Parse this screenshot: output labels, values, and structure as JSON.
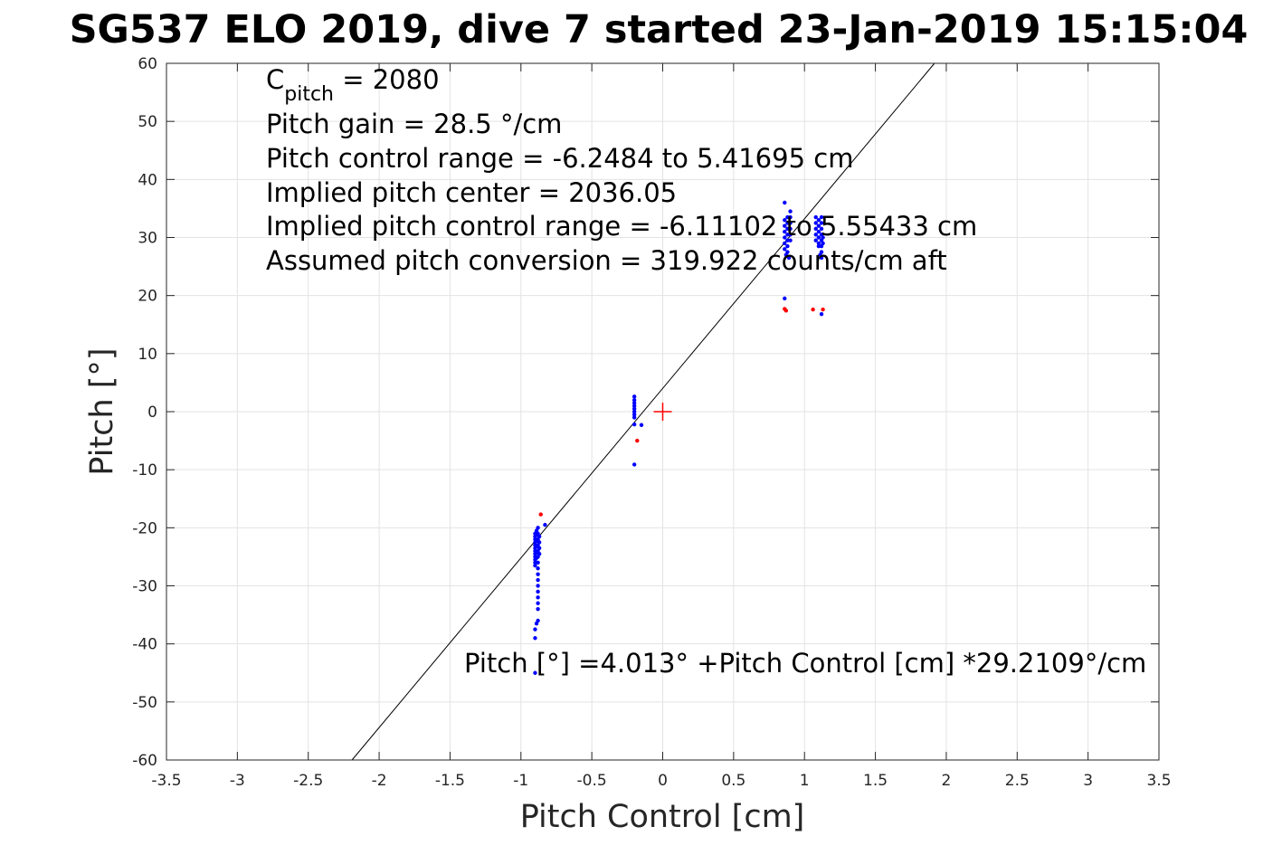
{
  "chart_data": {
    "type": "scatter",
    "title": "SG537 ELO 2019, dive 7 started 23-Jan-2019 15:15:04",
    "xlabel": "Pitch Control [cm]",
    "ylabel": "Pitch [°]",
    "xlim": [
      -3.5,
      3.5
    ],
    "ylim": [
      -60,
      60
    ],
    "xticks": [
      -3.5,
      -3,
      -2.5,
      -2,
      -1.5,
      -1,
      -0.5,
      0,
      0.5,
      1,
      1.5,
      2,
      2.5,
      3,
      3.5
    ],
    "xtick_labels": [
      "-3.5",
      "-3",
      "-2.5",
      "-2",
      "-1.5",
      "-1",
      "-0.5",
      "0",
      "0.5",
      "1",
      "1.5",
      "2",
      "2.5",
      "3",
      "3.5"
    ],
    "yticks": [
      -60,
      -50,
      -40,
      -30,
      -20,
      -10,
      0,
      10,
      20,
      30,
      40,
      50,
      60
    ],
    "ytick_labels": [
      "-60",
      "-50",
      "-40",
      "-30",
      "-20",
      "-10",
      "0",
      "10",
      "20",
      "30",
      "40",
      "50",
      "60"
    ],
    "grid": true,
    "fit_line": {
      "intercept": 4.013,
      "slope": 29.2109
    },
    "center_marker": {
      "x": 0,
      "y": 0,
      "color": "#ff0000"
    },
    "annotations": {
      "cpitch_prefix": "C",
      "cpitch_sub": "pitch",
      "cpitch_value": " = 2080",
      "lines": [
        "Pitch gain = 28.5 °/cm",
        "Pitch control range = -6.2484 to 5.41695 cm",
        "Implied pitch center = 2036.05",
        "Implied pitch control range = -6.11102 to 5.55433 cm",
        "Assumed pitch conversion = 319.922 counts/cm aft"
      ],
      "fit_equation": "Pitch [°] =4.013° +Pitch Control [cm] *29.2109°/cm"
    },
    "series": [
      {
        "color": "#0000ff",
        "points": [
          [
            -0.9,
            -21
          ],
          [
            -0.9,
            -21.5
          ],
          [
            -0.9,
            -22
          ],
          [
            -0.9,
            -22.5
          ],
          [
            -0.9,
            -23
          ],
          [
            -0.9,
            -23.5
          ],
          [
            -0.9,
            -24
          ],
          [
            -0.9,
            -24.5
          ],
          [
            -0.9,
            -25
          ],
          [
            -0.9,
            -25.5
          ],
          [
            -0.9,
            -26
          ],
          [
            -0.9,
            -26.5
          ],
          [
            -0.89,
            -20.5
          ],
          [
            -0.89,
            -21.2
          ],
          [
            -0.89,
            -22.3
          ],
          [
            -0.89,
            -23.2
          ],
          [
            -0.89,
            -24.3
          ],
          [
            -0.89,
            -25.2
          ],
          [
            -0.88,
            -20
          ],
          [
            -0.88,
            -21
          ],
          [
            -0.88,
            -22
          ],
          [
            -0.88,
            -23
          ],
          [
            -0.88,
            -24
          ],
          [
            -0.88,
            -25
          ],
          [
            -0.88,
            -26
          ],
          [
            -0.88,
            -27
          ],
          [
            -0.88,
            -28
          ],
          [
            -0.88,
            -29
          ],
          [
            -0.88,
            -30
          ],
          [
            -0.88,
            -31
          ],
          [
            -0.88,
            -32
          ],
          [
            -0.88,
            -33
          ],
          [
            -0.88,
            -34
          ],
          [
            -0.87,
            -21.5
          ],
          [
            -0.87,
            -22.5
          ],
          [
            -0.87,
            -23.5
          ],
          [
            -0.87,
            -24.5
          ],
          [
            -0.89,
            -36.5
          ],
          [
            -0.9,
            -37.5
          ],
          [
            -0.88,
            -36
          ],
          [
            -0.9,
            -39
          ],
          [
            -0.9,
            -45
          ],
          [
            -0.83,
            -19.5
          ],
          [
            -0.2,
            2.6
          ],
          [
            -0.2,
            2
          ],
          [
            -0.2,
            1.5
          ],
          [
            -0.2,
            1
          ],
          [
            -0.2,
            0.5
          ],
          [
            -0.2,
            0
          ],
          [
            -0.2,
            -0.5
          ],
          [
            -0.2,
            -1
          ],
          [
            -0.2,
            -2.2
          ],
          [
            -0.15,
            -2.3
          ],
          [
            -0.2,
            -9.1
          ],
          [
            0.86,
            36
          ],
          [
            0.86,
            33
          ],
          [
            0.86,
            32
          ],
          [
            0.86,
            31
          ],
          [
            0.86,
            30
          ],
          [
            0.86,
            29
          ],
          [
            0.86,
            28
          ],
          [
            0.88,
            33.5
          ],
          [
            0.88,
            32.5
          ],
          [
            0.88,
            31.5
          ],
          [
            0.88,
            30.5
          ],
          [
            0.88,
            29.5
          ],
          [
            0.88,
            28.5
          ],
          [
            0.88,
            27.5
          ],
          [
            0.9,
            34.5
          ],
          [
            0.9,
            33.5
          ],
          [
            0.9,
            32.5
          ],
          [
            0.9,
            31.5
          ],
          [
            0.9,
            30.5
          ],
          [
            0.9,
            29.5
          ],
          [
            0.87,
            27
          ],
          [
            0.89,
            26.5
          ],
          [
            0.86,
            19.5
          ],
          [
            1.08,
            33.5
          ],
          [
            1.08,
            32.5
          ],
          [
            1.08,
            31.5
          ],
          [
            1.08,
            30.5
          ],
          [
            1.08,
            29.5
          ],
          [
            1.1,
            33
          ],
          [
            1.1,
            32
          ],
          [
            1.1,
            31
          ],
          [
            1.1,
            30
          ],
          [
            1.1,
            29
          ],
          [
            1.1,
            28.5
          ],
          [
            1.12,
            33.5
          ],
          [
            1.12,
            32.5
          ],
          [
            1.12,
            31.5
          ],
          [
            1.12,
            30.5
          ],
          [
            1.12,
            29.5
          ],
          [
            1.12,
            28.5
          ],
          [
            1.12,
            27.5
          ],
          [
            1.12,
            26.5
          ],
          [
            1.13,
            30
          ],
          [
            1.13,
            29
          ],
          [
            1.11,
            27
          ],
          [
            1.12,
            16.8
          ]
        ]
      },
      {
        "color": "#ff0000",
        "points": [
          [
            -0.86,
            -17.7
          ],
          [
            -0.18,
            -5
          ],
          [
            0.86,
            17.7
          ],
          [
            0.87,
            17.4
          ],
          [
            1.06,
            17.6
          ],
          [
            1.13,
            17.6
          ]
        ]
      }
    ]
  }
}
